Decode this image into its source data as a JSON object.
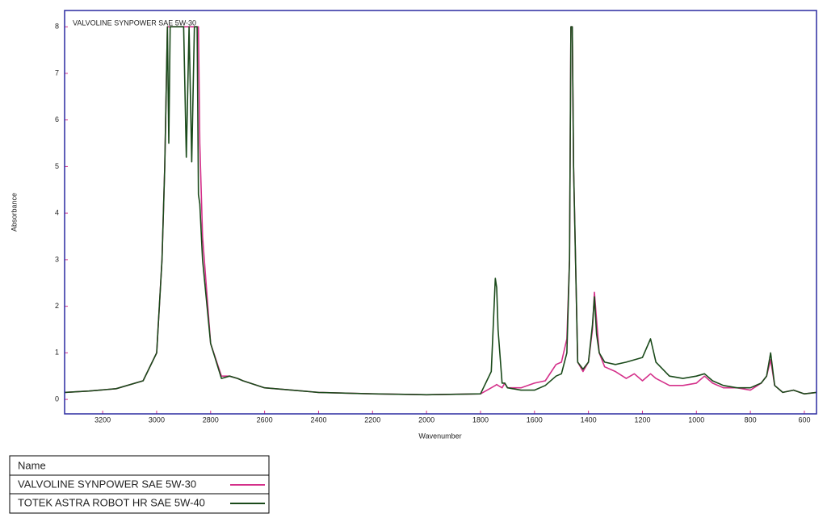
{
  "chart_data": {
    "type": "line",
    "title": "VALVOLINE SYNPOWER SAE 5W-30",
    "xlabel": "Wavenumber",
    "ylabel": "Absorbance",
    "legend_header": "Name",
    "x": [
      3341,
      3250,
      3150,
      3050,
      3000,
      2980,
      2970,
      2960,
      2955,
      2950,
      2930,
      2900,
      2890,
      2880,
      2870,
      2860,
      2850,
      2845,
      2840,
      2830,
      2800,
      2760,
      2730,
      2700,
      2680,
      2600,
      2400,
      2200,
      2000,
      1800,
      1760,
      1745,
      1740,
      1735,
      1720,
      1710,
      1700,
      1650,
      1600,
      1560,
      1520,
      1500,
      1480,
      1470,
      1465,
      1460,
      1455,
      1440,
      1420,
      1400,
      1385,
      1378,
      1370,
      1360,
      1340,
      1300,
      1260,
      1230,
      1200,
      1170,
      1150,
      1100,
      1050,
      1000,
      970,
      940,
      900,
      850,
      800,
      760,
      740,
      725,
      710,
      680,
      640,
      600,
      555
    ],
    "series": [
      {
        "name": "VALVOLINE SYNPOWER SAE 5W-30",
        "color": "#d4308a",
        "values": [
          0.15,
          0.18,
          0.23,
          0.4,
          1.0,
          3.0,
          5.0,
          8,
          8,
          8,
          8,
          8,
          8,
          8,
          8,
          8,
          8,
          8,
          5.5,
          3.5,
          1.2,
          0.5,
          0.5,
          0.45,
          0.4,
          0.25,
          0.15,
          0.12,
          0.1,
          0.12,
          0.25,
          0.3,
          0.32,
          0.3,
          0.25,
          0.35,
          0.25,
          0.25,
          0.35,
          0.4,
          0.75,
          0.8,
          1.3,
          3,
          8,
          8,
          5,
          0.8,
          0.6,
          0.8,
          1.5,
          2.3,
          1.7,
          1.0,
          0.7,
          0.6,
          0.45,
          0.55,
          0.4,
          0.55,
          0.45,
          0.3,
          0.3,
          0.35,
          0.5,
          0.35,
          0.25,
          0.25,
          0.2,
          0.35,
          0.5,
          0.85,
          0.3,
          0.15,
          0.2,
          0.12,
          0.15
        ]
      },
      {
        "name": "TOTEK ASTRA ROBOT HR SAE 5W-40",
        "color": "#1a4a1a",
        "values": [
          0.15,
          0.18,
          0.23,
          0.4,
          1.0,
          3.0,
          5.0,
          8,
          5.5,
          8,
          8,
          8,
          5.2,
          8,
          5.1,
          8,
          8,
          4.4,
          4.2,
          3.0,
          1.2,
          0.45,
          0.5,
          0.45,
          0.4,
          0.25,
          0.15,
          0.12,
          0.1,
          0.12,
          0.6,
          2.6,
          2.4,
          1.5,
          0.35,
          0.35,
          0.25,
          0.2,
          0.2,
          0.3,
          0.5,
          0.55,
          1.0,
          3,
          8,
          8,
          5,
          0.8,
          0.65,
          0.8,
          1.6,
          2.2,
          1.4,
          1.0,
          0.8,
          0.75,
          0.8,
          0.85,
          0.9,
          1.3,
          0.8,
          0.5,
          0.45,
          0.5,
          0.55,
          0.4,
          0.3,
          0.25,
          0.25,
          0.35,
          0.5,
          1.0,
          0.3,
          0.15,
          0.2,
          0.12,
          0.15
        ]
      }
    ],
    "xlim": [
      3341,
      555
    ],
    "xticks": [
      3200,
      3000,
      2800,
      2600,
      2400,
      2200,
      2000,
      1800,
      1600,
      1400,
      1200,
      1000,
      800,
      600
    ],
    "ylim": [
      -0.31,
      8.35
    ],
    "yticks": [
      0,
      1,
      2,
      3,
      4,
      5,
      6,
      7,
      8
    ],
    "tick_color": "#d4308a",
    "frame_color": "#2a2aa0"
  }
}
